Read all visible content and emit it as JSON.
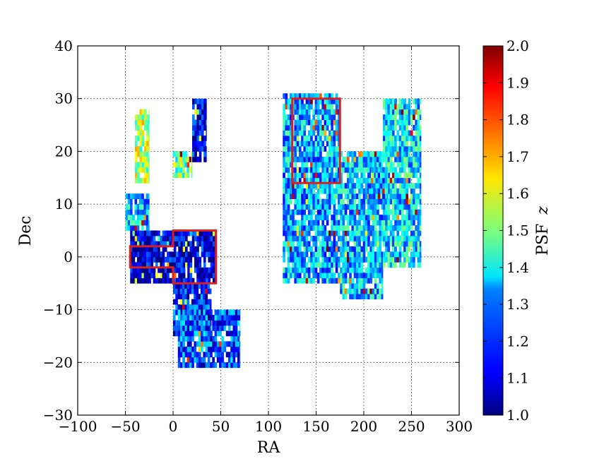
{
  "chart_data": {
    "type": "heatmap",
    "xlabel": "RA",
    "ylabel": "Dec",
    "xlim": [
      -100,
      300
    ],
    "ylim": [
      -30,
      40
    ],
    "xticks": [
      -100,
      -50,
      0,
      50,
      100,
      150,
      200,
      250,
      300
    ],
    "yticks": [
      -30,
      -20,
      -10,
      0,
      10,
      20,
      30,
      40
    ],
    "xtick_labels": [
      "−100",
      "−50",
      "0",
      "50",
      "100",
      "150",
      "200",
      "250",
      "300"
    ],
    "ytick_labels": [
      "−30",
      "−20",
      "−10",
      "0",
      "10",
      "20",
      "30",
      "40"
    ],
    "grid": true,
    "colorbar": {
      "label": "PSF z",
      "label_main": "PSF",
      "label_var": "z",
      "min": 1.0,
      "max": 2.0,
      "ticks": [
        1.0,
        1.1,
        1.2,
        1.3,
        1.4,
        1.5,
        1.6,
        1.7,
        1.8,
        1.9,
        2.0
      ],
      "tick_labels": [
        "1.0",
        "1.1",
        "1.2",
        "1.3",
        "1.4",
        "1.5",
        "1.6",
        "1.7",
        "1.8",
        "1.9",
        "2.0"
      ],
      "colormap": "jet"
    },
    "regions": [
      {
        "ra": [
          -45,
          45
        ],
        "dec": [
          -5,
          5
        ],
        "value": 1.08
      },
      {
        "ra": [
          -50,
          -25
        ],
        "dec": [
          5,
          12
        ],
        "value": 1.32
      },
      {
        "ra": [
          -40,
          -25
        ],
        "dec": [
          14,
          28
        ],
        "value": 1.55
      },
      {
        "ra": [
          0,
          20
        ],
        "dec": [
          15,
          20
        ],
        "value": 1.5
      },
      {
        "ra": [
          20,
          35
        ],
        "dec": [
          18,
          30
        ],
        "value": 1.1
      },
      {
        "ra": [
          0,
          40
        ],
        "dec": [
          -15,
          -5
        ],
        "value": 1.15
      },
      {
        "ra": [
          5,
          70
        ],
        "dec": [
          -21,
          -10
        ],
        "value": 1.2
      },
      {
        "ra": [
          115,
          175
        ],
        "dec": [
          -5,
          31
        ],
        "value": 1.3
      },
      {
        "ra": [
          175,
          220
        ],
        "dec": [
          -8,
          20
        ],
        "value": 1.32
      },
      {
        "ra": [
          220,
          260
        ],
        "dec": [
          -2,
          30
        ],
        "value": 1.35
      },
      {
        "ra": [
          205,
          225
        ],
        "dec": [
          10,
          17
        ],
        "value": 1.28
      }
    ],
    "highlight_boxes": [
      {
        "polygon": [
          [
            -45,
            2
          ],
          [
            0,
            2
          ],
          [
            0,
            5
          ],
          [
            45,
            5
          ],
          [
            45,
            -5
          ],
          [
            0,
            -5
          ],
          [
            0,
            -2
          ],
          [
            -45,
            -2
          ]
        ],
        "color": "#dc1e1e"
      },
      {
        "polygon": [
          [
            125,
            14
          ],
          [
            125,
            30
          ],
          [
            175,
            30
          ],
          [
            175,
            14
          ]
        ],
        "color": "#dc1e1e"
      }
    ]
  }
}
